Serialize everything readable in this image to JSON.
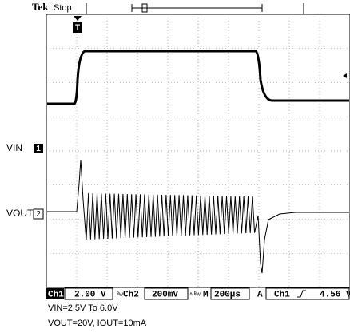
{
  "header": {
    "brand": "Tek",
    "status": "Stop",
    "trigger_marker": "T"
  },
  "channel_labels": [
    {
      "name": "VIN",
      "marker": "1"
    },
    {
      "name": "VOUT",
      "marker": "2"
    }
  ],
  "status_bar": {
    "ch1": "Ch1",
    "ch1_scale": "2.00 V",
    "ch2": "Ch2",
    "ch2_scale": "200mV",
    "time_label": "M",
    "time_scale": "200µs",
    "trigger_label": "A",
    "trigger_source": "Ch1",
    "trigger_level": "4.56 V"
  },
  "caption": [
    "VIN=2.5V To 6.0V",
    "VOUT=20V, IOUT=10mA"
  ]
}
